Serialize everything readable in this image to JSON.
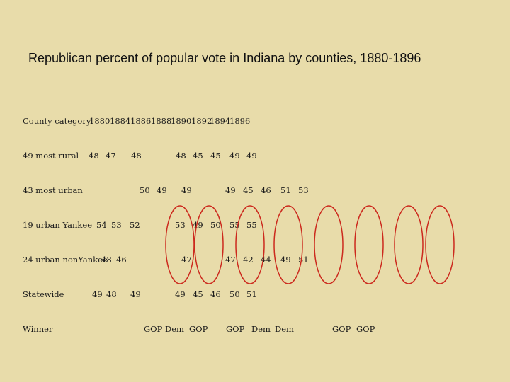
{
  "title": "Republican percent of popular vote in Indiana by counties, 1880-1896",
  "header": {
    "label": "County category",
    "years": [
      "1880",
      "1884",
      "1886",
      "1888",
      "1890",
      "1892",
      "1894",
      "1896"
    ]
  },
  "rows": [
    {
      "label": "49 most rural",
      "values": [
        "48",
        "47",
        "48",
        "48",
        "45",
        "45",
        "49",
        "49"
      ]
    },
    {
      "label": "43 most urban",
      "values": [
        "50",
        "49",
        "49",
        "49",
        "45",
        "46",
        "51",
        "53"
      ]
    },
    {
      "label": "19 urban Yankee",
      "values": [
        "54",
        "53",
        "52",
        "53",
        "49",
        "50",
        "55",
        "55"
      ]
    },
    {
      "label": "24 urban nonYankee",
      "values": [
        "48",
        "46",
        "47",
        "47",
        "42",
        "44",
        "49",
        "51"
      ]
    },
    {
      "label": "Statewide",
      "values": [
        "49",
        "48",
        "49",
        "49",
        "45",
        "46",
        "50",
        "51"
      ]
    },
    {
      "label": "Winner",
      "values": [
        "GOP",
        "Dem",
        "GOP",
        "GOP",
        "Dem",
        "Dem",
        "GOP",
        "GOP"
      ]
    }
  ],
  "colors": {
    "background": "#e8dcaa",
    "oval_stroke": "#cc2a1e"
  }
}
